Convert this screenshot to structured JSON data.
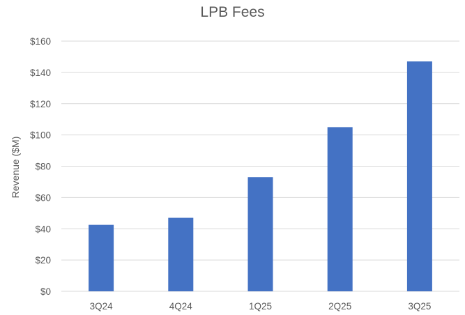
{
  "chart_data": {
    "type": "bar",
    "title": "LPB Fees",
    "xlabel": "",
    "ylabel": "Revenue ($M)",
    "categories": [
      "3Q24",
      "4Q24",
      "1Q25",
      "2Q25",
      "3Q25"
    ],
    "values": [
      42.5,
      47,
      73,
      105,
      147
    ],
    "ylim": [
      0,
      160
    ],
    "yticks": [
      0,
      20,
      40,
      60,
      80,
      100,
      120,
      140,
      160
    ],
    "ytick_labels": [
      "$0",
      "$20",
      "$40",
      "$60",
      "$80",
      "$100",
      "$120",
      "$140",
      "$160"
    ],
    "grid": true,
    "legend": "none",
    "bar_color": "#4472C4",
    "grid_color": "#D9D9D9"
  }
}
